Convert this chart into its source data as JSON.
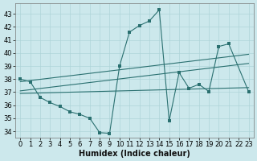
{
  "xlabel": "Humidex (Indice chaleur)",
  "bg_color": "#cce8ec",
  "line_color": "#2a7070",
  "xlim": [
    -0.5,
    23.5
  ],
  "ylim": [
    33.5,
    43.8
  ],
  "xticks": [
    0,
    1,
    2,
    3,
    4,
    5,
    6,
    7,
    8,
    9,
    10,
    11,
    12,
    13,
    14,
    15,
    16,
    17,
    18,
    19,
    20,
    21,
    22,
    23
  ],
  "yticks": [
    34,
    35,
    36,
    37,
    38,
    39,
    40,
    41,
    42,
    43
  ],
  "line1_x": [
    0,
    1,
    2,
    3,
    4,
    5,
    6,
    7,
    8,
    9,
    10,
    11,
    12,
    13,
    14,
    15,
    16,
    17,
    18,
    19,
    20,
    21,
    23
  ],
  "line1_y": [
    38.0,
    37.8,
    36.6,
    36.2,
    35.9,
    35.5,
    35.3,
    35.0,
    33.9,
    33.85,
    39.0,
    41.6,
    42.1,
    42.45,
    43.3,
    34.8,
    38.5,
    37.3,
    37.6,
    37.05,
    40.5,
    40.7,
    37.05
  ],
  "line2_x": [
    0,
    23
  ],
  "line2_y": [
    37.8,
    39.9
  ],
  "line3_x": [
    0,
    23
  ],
  "line3_y": [
    37.1,
    39.2
  ],
  "line4_x": [
    0,
    23
  ],
  "line4_y": [
    36.9,
    37.35
  ],
  "grid_color": "#aed4d8",
  "label_fontsize": 7,
  "tick_fontsize": 6
}
